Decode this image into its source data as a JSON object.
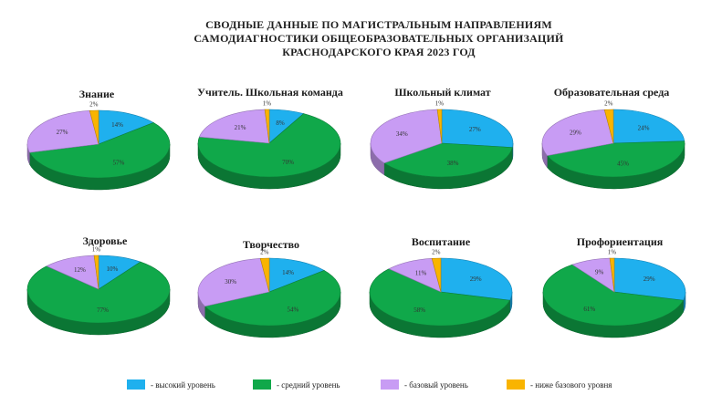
{
  "title_lines": [
    "СВОДНЫЕ ДАННЫЕ ПО МАГИСТРАЛЬНЫМ НАПРАВЛЕНИЯМ",
    "САМОДИАГНОСТИКИ ОБЩЕОБРАЗОВАТЕЛЬНЫХ ОРГАНИЗАЦИЙ",
    "КРАСНОДАРСКОГО КРАЯ 2023 ГОД"
  ],
  "legend": [
    {
      "label": "- высокий уровень",
      "color": "#1fb0ee"
    },
    {
      "label": "- средний уровень",
      "color": "#10a84a"
    },
    {
      "label": "- базовый уровень",
      "color": "#c89cf4"
    },
    {
      "label": "- ниже базового уровня",
      "color": "#f9b400"
    }
  ],
  "chart_data": [
    {
      "type": "pie",
      "title": "Знание",
      "categories": [
        "высокий уровень",
        "средний уровень",
        "базовый уровень",
        "ниже базового уровня"
      ],
      "values": [
        14,
        57,
        27,
        2
      ],
      "labels": [
        "14%",
        "57%",
        "27%",
        "2%"
      ]
    },
    {
      "type": "pie",
      "title": "Учитель. Школьная команда",
      "categories": [
        "высокий уровень",
        "средний уровень",
        "базовый уровень",
        "ниже базового уровня"
      ],
      "values": [
        8,
        70,
        21,
        1
      ],
      "labels": [
        "8%",
        "70%",
        "21%",
        "1%"
      ]
    },
    {
      "type": "pie",
      "title": "Школьный климат",
      "categories": [
        "высокий уровень",
        "средний уровень",
        "базовый уровень",
        "ниже базового уровня"
      ],
      "values": [
        27,
        38,
        34,
        1
      ],
      "labels": [
        "27%",
        "38%",
        "34%",
        "1%"
      ]
    },
    {
      "type": "pie",
      "title": "Образовательная среда",
      "categories": [
        "высокий уровень",
        "средний уровень",
        "базовый уровень",
        "ниже базового уровня"
      ],
      "values": [
        24,
        45,
        29,
        2
      ],
      "labels": [
        "24%",
        "45%",
        "29%",
        "2%"
      ]
    },
    {
      "type": "pie",
      "title": "Здоровье",
      "categories": [
        "высокий уровень",
        "средний уровень",
        "базовый уровень",
        "ниже базового уровня"
      ],
      "values": [
        10,
        77,
        12,
        1
      ],
      "labels": [
        "10%",
        "77%",
        "12%",
        "1%"
      ]
    },
    {
      "type": "pie",
      "title": "Творчество",
      "categories": [
        "высокий уровень",
        "средний уровень",
        "базовый уровень",
        "ниже базового уровня"
      ],
      "values": [
        14,
        54,
        30,
        2
      ],
      "labels": [
        "14%",
        "54%",
        "30%",
        "2%"
      ]
    },
    {
      "type": "pie",
      "title": "Воспитание",
      "categories": [
        "высокий уровень",
        "средний уровень",
        "базовый уровень",
        "ниже базового уровня"
      ],
      "values": [
        29,
        58,
        11,
        2
      ],
      "labels": [
        "29%",
        "58%",
        "11%",
        "2%"
      ]
    },
    {
      "type": "pie",
      "title": "Профориентация",
      "categories": [
        "высокий уровень",
        "средний уровень",
        "базовый уровень",
        "ниже базового уровня"
      ],
      "values": [
        29,
        61,
        9,
        1
      ],
      "labels": [
        "29%",
        "61%",
        "9%",
        "1%"
      ]
    }
  ]
}
